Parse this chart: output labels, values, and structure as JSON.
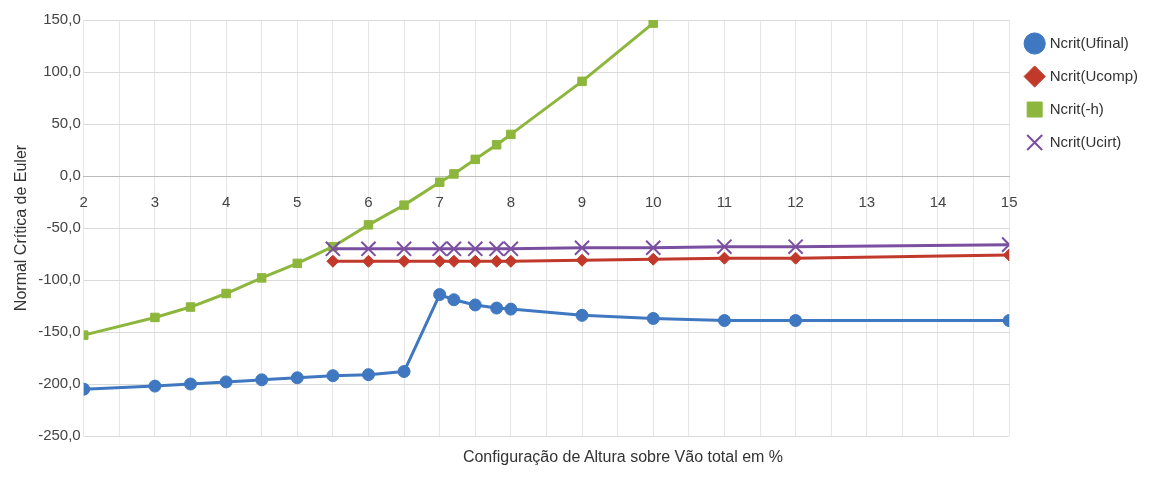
{
  "chart_data": {
    "type": "line",
    "xlabel": "Configuração de Altura sobre Vão total em %",
    "ylabel": "Normal Crítica de Euler",
    "xlim": [
      2,
      15
    ],
    "xticks": [
      2,
      {
        "value": 2.5,
        "label": null
      },
      3,
      {
        "value": 3.5,
        "label": null
      },
      4,
      {
        "value": 4.5,
        "label": null
      },
      5,
      {
        "value": 5.5,
        "label": null
      },
      6,
      {
        "value": 6.5,
        "label": null
      },
      7,
      {
        "value": 7.5,
        "label": null
      },
      8,
      {
        "value": 8.5,
        "label": null
      },
      9,
      {
        "value": 9.5,
        "label": null
      },
      10,
      {
        "value": 10.5,
        "label": null
      },
      11,
      {
        "value": 11.5,
        "label": null
      },
      12,
      {
        "value": 12.5,
        "label": null
      },
      13,
      {
        "value": 13.5,
        "label": null
      },
      14,
      {
        "value": 14.5,
        "label": null
      },
      15
    ],
    "ylim": [
      -250,
      150
    ],
    "yticks": [
      {
        "value": -250,
        "label": "-250,0"
      },
      {
        "value": -200,
        "label": "-200,0"
      },
      {
        "value": -150,
        "label": "-150,0"
      },
      {
        "value": -100,
        "label": "-100,0"
      },
      {
        "value": -50,
        "label": "-50,0"
      },
      {
        "value": 0,
        "label": "0,0"
      },
      {
        "value": 50,
        "label": "50,0"
      },
      {
        "value": 100,
        "label": "100,0"
      },
      {
        "value": 150,
        "label": "150,0"
      }
    ],
    "grid": true,
    "legend": "top right",
    "series": [
      {
        "name": "Ncrit(Ufinal)",
        "color": "#3f78c0",
        "marker": "circle",
        "x": [
          2,
          3,
          3.5,
          4,
          4.5,
          5,
          5.5,
          6,
          6.5,
          7,
          7.2,
          7.5,
          7.8,
          8,
          9,
          10,
          11,
          12,
          15
        ],
        "values": [
          -205,
          -202,
          -200,
          -198,
          -196,
          -194,
          -192,
          -191,
          -188,
          -114,
          -119,
          -124,
          -127,
          -128,
          -134,
          -137,
          -139,
          -139,
          -139
        ]
      },
      {
        "name": "Ncrit(Ucomp)",
        "color": "#c0392b",
        "marker": "diamond",
        "x": [
          5.5,
          6,
          6.5,
          7,
          7.2,
          7.5,
          7.8,
          8,
          9,
          10,
          11,
          12,
          15
        ],
        "values": [
          -82,
          -82,
          -82,
          -82,
          -82,
          -82,
          -82,
          -82,
          -81,
          -80,
          -79,
          -79,
          -76
        ]
      },
      {
        "name": "Ncrit(-h)",
        "color": "#8db63c",
        "marker": "square",
        "x": [
          2,
          3,
          3.5,
          4,
          4.5,
          5,
          5.5,
          6,
          6.5,
          7,
          7.2,
          7.5,
          7.8,
          8,
          9,
          10
        ],
        "values": [
          -153,
          -136,
          -126,
          -113,
          -98,
          -84,
          -68,
          -47,
          -28,
          -6,
          2,
          16,
          30,
          40,
          91,
          147
        ]
      },
      {
        "name": "Ncrit(Ucirt)",
        "color": "#7b4fa0",
        "marker": "cross",
        "x": [
          5.5,
          6,
          6.5,
          7,
          7.2,
          7.5,
          7.8,
          8,
          9,
          10,
          11,
          12,
          15
        ],
        "values": [
          -70,
          -70,
          -70,
          -70,
          -70,
          -70,
          -70,
          -70,
          -69,
          -69,
          -68,
          -68,
          -66
        ]
      }
    ]
  }
}
